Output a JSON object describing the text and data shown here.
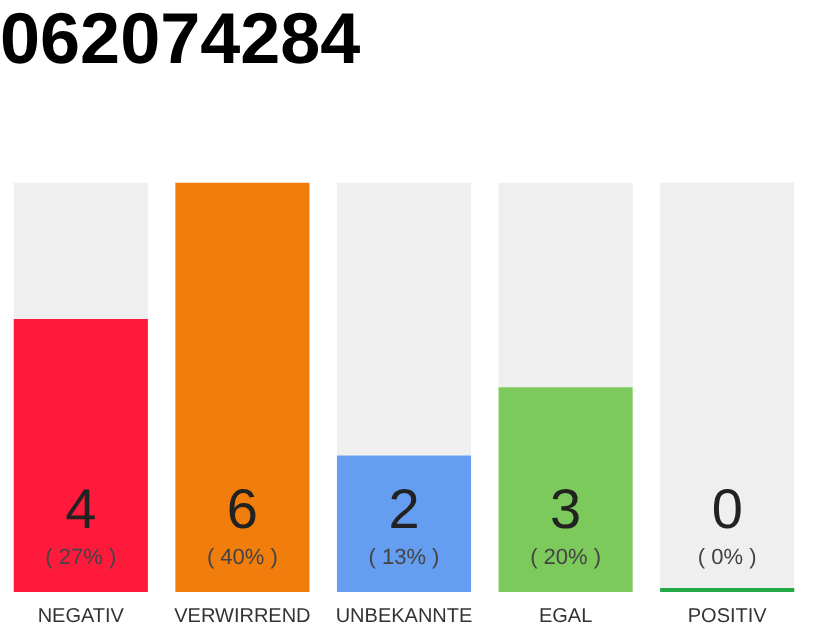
{
  "chart_data": {
    "type": "bar",
    "title": "062074284",
    "stacked": true,
    "categories": [
      "NEGATIV",
      "VERWIRREND",
      "UNBEKANNTE",
      "EGAL",
      "POSITIV"
    ],
    "series": [
      {
        "colors": [
          "#ff1a3c",
          "#f07d0c",
          "#659ef0",
          "#7cc95c",
          "#22a845"
        ],
        "values": [
          4,
          6,
          2,
          3,
          0
        ],
        "value_labels": [
          "4",
          "6",
          "2",
          "3",
          "0"
        ]
      },
      {
        "color": "#efefef",
        "values": [
          2,
          0,
          4,
          3,
          6
        ]
      }
    ],
    "ylim": [
      0,
      6
    ],
    "annotations": [
      "( 27% )",
      "( 40% )",
      "( 13% )",
      "( 20% )",
      "( 0% )"
    ],
    "grid": false,
    "legend": false
  }
}
